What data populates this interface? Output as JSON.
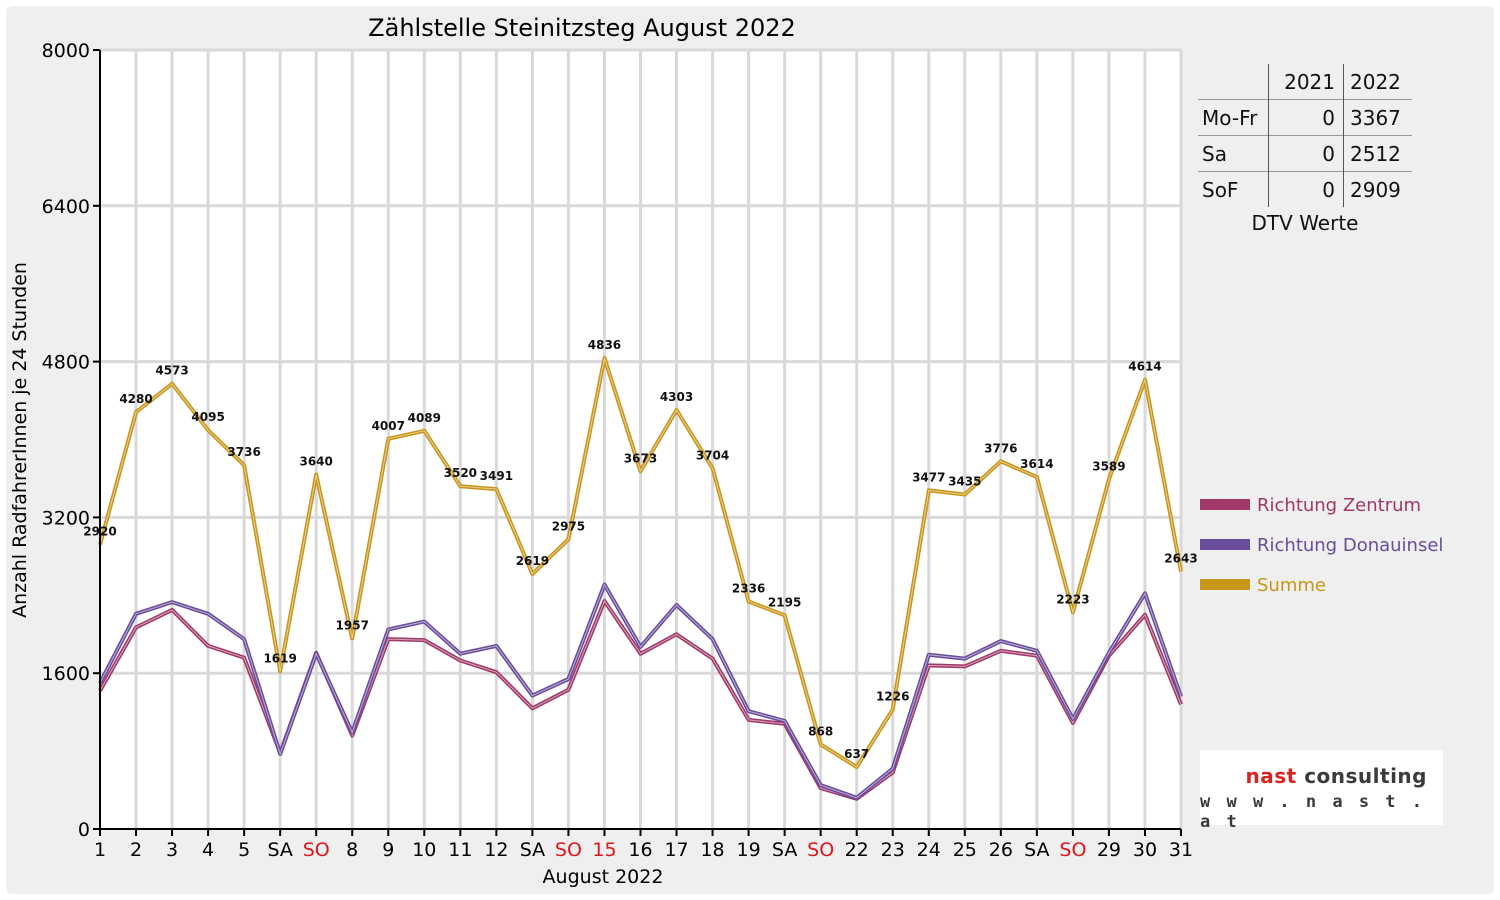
{
  "chart_data": {
    "type": "line",
    "title": "Zählstelle Steinitzsteg August 2022",
    "xlabel": "August 2022",
    "ylabel": "Anzahl RadfahrerInnen je 24 Stunden",
    "ylim": [
      0,
      8000
    ],
    "yticks": [
      "0",
      "1600",
      "3200",
      "4800",
      "6400",
      "8000"
    ],
    "categories": [
      "1",
      "2",
      "3",
      "4",
      "5",
      "SA",
      "SO",
      "8",
      "9",
      "10",
      "11",
      "12",
      "SA",
      "SO",
      "15",
      "16",
      "17",
      "18",
      "19",
      "SA",
      "SO",
      "22",
      "23",
      "24",
      "25",
      "26",
      "SA",
      "SO",
      "29",
      "30",
      "31"
    ],
    "holiday_indices": [
      6,
      13,
      14,
      20,
      27
    ],
    "grid": true,
    "legend_position": "right",
    "series": [
      {
        "name": "Richtung Zentrum",
        "color": "#a0386a",
        "values": [
          1420,
          2070,
          2250,
          1880,
          1760,
          780,
          1810,
          960,
          1950,
          1940,
          1730,
          1610,
          1240,
          1430,
          2340,
          1800,
          2000,
          1750,
          1120,
          1080,
          420,
          310,
          580,
          1680,
          1670,
          1830,
          1780,
          1090,
          1780,
          2200,
          1280
        ]
      },
      {
        "name": "Richtung Donauinsel",
        "color": "#6a4c9c",
        "values": [
          1500,
          2210,
          2330,
          2210,
          1950,
          770,
          1800,
          990,
          2050,
          2130,
          1800,
          1880,
          1370,
          1540,
          2510,
          1870,
          2300,
          1950,
          1210,
          1110,
          450,
          320,
          620,
          1790,
          1750,
          1930,
          1830,
          1130,
          1810,
          2420,
          1360
        ]
      },
      {
        "name": "Summe",
        "color": "#c8961a",
        "values": [
          2920,
          4280,
          4573,
          4095,
          3736,
          1619,
          3640,
          1957,
          4007,
          4089,
          3520,
          3491,
          2619,
          2975,
          4836,
          3673,
          4303,
          3704,
          2336,
          2195,
          868,
          637,
          1226,
          3477,
          3435,
          3776,
          3614,
          2223,
          3589,
          4614,
          2643
        ],
        "labels": [
          "2920",
          "4280",
          "4573",
          "4095",
          "3736",
          "1619",
          "3640",
          "1957",
          "4007",
          "4089",
          "3520",
          "3491",
          "2619",
          "2975",
          "4836",
          "3673",
          "4303",
          "3704",
          "2336",
          "2195",
          "868",
          "637",
          "1226",
          "3477",
          "3435",
          "3776",
          "3614",
          "2223",
          "3589",
          "4614",
          "2643"
        ]
      }
    ]
  },
  "dtv_table": {
    "headers": [
      "",
      "2021",
      "2022"
    ],
    "rows": [
      {
        "label": "Mo-Fr",
        "v2021": "0",
        "v2022": "3367"
      },
      {
        "label": "Sa",
        "v2021": "0",
        "v2022": "2512"
      },
      {
        "label": "SoF",
        "v2021": "0",
        "v2022": "2909"
      }
    ],
    "caption": "DTV Werte"
  },
  "logo": {
    "word1": "nast",
    "word2": "consulting",
    "url": "w w w . n a s t . a t"
  },
  "colors": {
    "holiday": "#e0161a",
    "axis": "#000000",
    "grid": "#d9d9d9",
    "background": "#efefef"
  }
}
